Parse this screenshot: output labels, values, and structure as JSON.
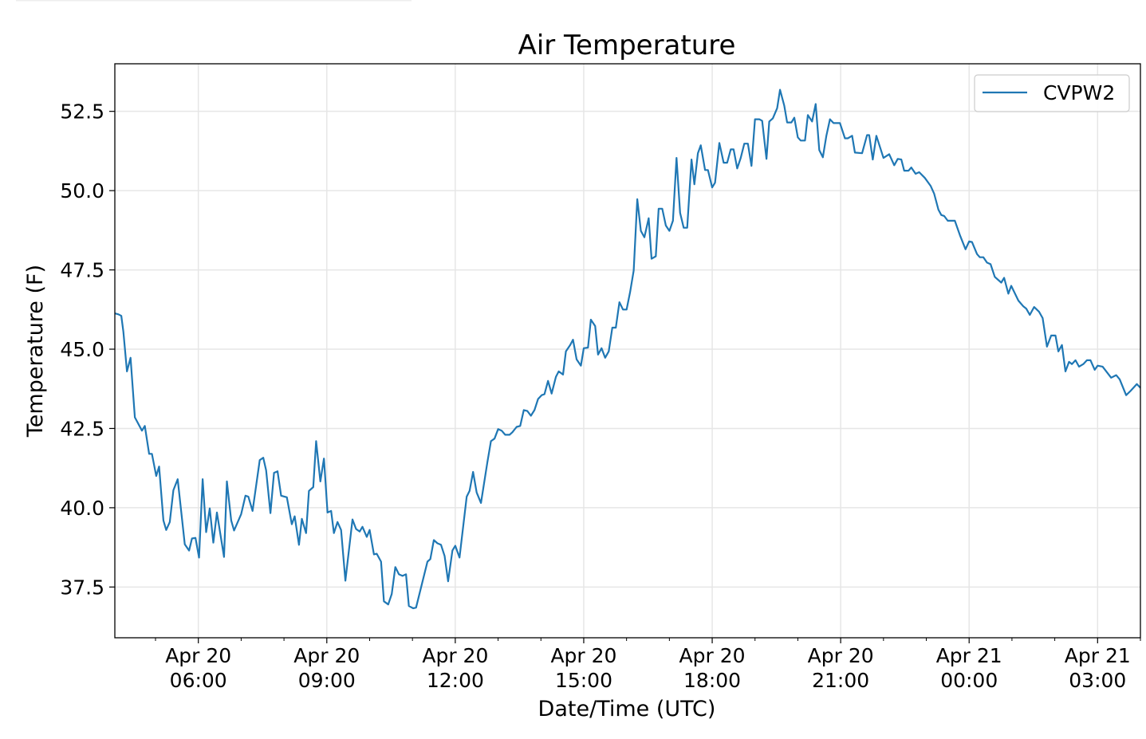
{
  "chart_data": {
    "type": "line",
    "title": "Air Temperature",
    "xlabel": "Date/Time (UTC)",
    "ylabel": "Temperature (F)",
    "x_units": "minutes since Apr 20 00:00 UTC",
    "xlim": [
      243,
      1680
    ],
    "ylim": [
      35.9,
      54.0
    ],
    "grid": true,
    "legend_position": "top-right",
    "x_ticks": [
      {
        "value": 360,
        "line1": "Apr 20",
        "line2": "06:00"
      },
      {
        "value": 540,
        "line1": "Apr 20",
        "line2": "09:00"
      },
      {
        "value": 720,
        "line1": "Apr 20",
        "line2": "12:00"
      },
      {
        "value": 900,
        "line1": "Apr 20",
        "line2": "15:00"
      },
      {
        "value": 1080,
        "line1": "Apr 20",
        "line2": "18:00"
      },
      {
        "value": 1260,
        "line1": "Apr 20",
        "line2": "21:00"
      },
      {
        "value": 1440,
        "line1": "Apr 21",
        "line2": "00:00"
      },
      {
        "value": 1620,
        "line1": "Apr 21",
        "line2": "03:00"
      }
    ],
    "y_ticks": [
      {
        "value": 37.5,
        "label": "37.5"
      },
      {
        "value": 40.0,
        "label": "40.0"
      },
      {
        "value": 42.5,
        "label": "42.5"
      },
      {
        "value": 45.0,
        "label": "45.0"
      },
      {
        "value": 47.5,
        "label": "47.5"
      },
      {
        "value": 50.0,
        "label": "50.0"
      },
      {
        "value": 52.5,
        "label": "52.5"
      }
    ],
    "series": [
      {
        "name": "CVPW2",
        "color": "#1f77b4",
        "x": [
          243,
          248,
          252,
          255,
          260,
          265,
          271,
          281,
          285,
          291,
          295,
          301,
          305,
          311,
          315,
          320,
          325,
          331,
          341,
          347,
          351,
          356,
          361,
          366,
          371,
          376,
          381,
          386,
          396,
          400,
          406,
          410,
          420,
          426,
          430,
          436,
          446,
          451,
          455,
          461,
          466,
          471,
          476,
          484,
          491,
          495,
          501,
          505,
          511,
          515,
          521,
          525,
          531,
          536,
          541,
          546,
          550,
          555,
          560,
          566,
          576,
          581,
          586,
          590,
          596,
          600,
          606,
          610,
          616,
          620,
          626,
          631,
          636,
          641,
          646,
          651,
          655,
          661,
          665,
          681,
          685,
          690,
          695,
          700,
          705,
          710,
          716,
          720,
          726,
          736,
          740,
          745,
          750,
          756,
          765,
          770,
          775,
          780,
          785,
          790,
          796,
          800,
          806,
          811,
          816,
          821,
          826,
          831,
          836,
          841,
          845,
          850,
          855,
          861,
          865,
          871,
          875,
          881,
          885,
          890,
          896,
          900,
          906,
          910,
          916,
          920,
          925,
          930,
          935,
          940,
          945,
          950,
          955,
          960,
          965,
          970,
          975,
          980,
          985,
          991,
          995,
          1001,
          1005,
          1010,
          1015,
          1020,
          1025,
          1030,
          1035,
          1040,
          1045,
          1051,
          1055,
          1060,
          1064,
          1070,
          1074,
          1080,
          1084,
          1090,
          1096,
          1101,
          1106,
          1110,
          1115,
          1120,
          1125,
          1130,
          1135,
          1140,
          1146,
          1150,
          1156,
          1160,
          1165,
          1171,
          1175,
          1181,
          1185,
          1191,
          1195,
          1200,
          1204,
          1210,
          1214,
          1220,
          1225,
          1230,
          1235,
          1240,
          1245,
          1250,
          1259,
          1266,
          1270,
          1276,
          1280,
          1290,
          1297,
          1300,
          1305,
          1310,
          1320,
          1328,
          1335,
          1340,
          1345,
          1349,
          1355,
          1359,
          1365,
          1370,
          1378,
          1386,
          1391,
          1397,
          1401,
          1405,
          1410,
          1420,
          1427,
          1435,
          1440,
          1444,
          1451,
          1455,
          1460,
          1465,
          1470,
          1476,
          1485,
          1489,
          1495,
          1499,
          1509,
          1516,
          1520,
          1525,
          1531,
          1538,
          1543,
          1549,
          1555,
          1561,
          1565,
          1570,
          1575,
          1580,
          1584,
          1589,
          1594,
          1600,
          1605,
          1610,
          1616,
          1620,
          1627,
          1639,
          1646,
          1651,
          1660,
          1666,
          1675,
          1680
        ],
        "y": [
          46.13,
          46.1,
          46.05,
          45.55,
          44.3,
          44.73,
          42.85,
          42.43,
          42.58,
          41.7,
          41.7,
          41.0,
          41.3,
          39.6,
          39.3,
          39.55,
          40.55,
          40.9,
          38.85,
          38.65,
          39.03,
          39.05,
          38.43,
          40.9,
          39.23,
          39.98,
          38.9,
          39.85,
          38.45,
          40.83,
          39.6,
          39.28,
          39.8,
          40.38,
          40.35,
          39.9,
          41.5,
          41.58,
          41.18,
          39.83,
          41.1,
          41.15,
          40.38,
          40.33,
          39.48,
          39.73,
          38.83,
          39.65,
          39.2,
          40.53,
          40.65,
          42.1,
          40.83,
          41.55,
          39.85,
          39.9,
          39.2,
          39.55,
          39.3,
          37.7,
          39.63,
          39.33,
          39.25,
          39.4,
          39.08,
          39.3,
          38.53,
          38.55,
          38.3,
          37.05,
          36.95,
          37.28,
          38.13,
          37.9,
          37.85,
          37.9,
          36.9,
          36.83,
          36.85,
          38.3,
          38.38,
          38.98,
          38.88,
          38.83,
          38.48,
          37.68,
          38.65,
          38.8,
          38.43,
          40.35,
          40.53,
          41.13,
          40.48,
          40.15,
          41.43,
          42.1,
          42.18,
          42.48,
          42.43,
          42.3,
          42.3,
          42.38,
          42.55,
          42.58,
          43.08,
          43.05,
          42.9,
          43.08,
          43.43,
          43.55,
          43.58,
          44.0,
          43.6,
          44.13,
          44.3,
          44.2,
          44.93,
          45.13,
          45.3,
          44.68,
          44.48,
          45.03,
          45.05,
          45.93,
          45.73,
          44.83,
          45.03,
          44.73,
          44.93,
          45.68,
          45.68,
          46.48,
          46.25,
          46.25,
          46.8,
          47.48,
          49.73,
          48.73,
          48.53,
          49.13,
          47.85,
          47.93,
          49.43,
          49.43,
          48.9,
          48.73,
          49.05,
          51.03,
          49.3,
          48.83,
          48.83,
          50.98,
          50.2,
          51.18,
          51.43,
          50.65,
          50.65,
          50.1,
          50.25,
          51.5,
          50.88,
          50.88,
          51.3,
          51.3,
          50.7,
          51.03,
          51.48,
          51.48,
          50.78,
          52.25,
          52.25,
          52.2,
          51.0,
          52.18,
          52.28,
          52.6,
          53.18,
          52.68,
          52.15,
          52.15,
          52.3,
          51.68,
          51.58,
          51.58,
          52.38,
          52.18,
          52.73,
          51.28,
          51.05,
          51.73,
          52.25,
          52.13,
          52.13,
          51.65,
          51.65,
          51.73,
          51.2,
          51.18,
          51.75,
          51.75,
          50.98,
          51.73,
          51.03,
          51.15,
          50.8,
          51.0,
          50.98,
          50.63,
          50.63,
          50.73,
          50.53,
          50.58,
          50.4,
          50.15,
          49.9,
          49.4,
          49.23,
          49.2,
          49.05,
          49.05,
          48.6,
          48.15,
          48.4,
          48.38,
          48.0,
          47.9,
          47.9,
          47.73,
          47.68,
          47.28,
          47.1,
          47.25,
          46.75,
          47.0,
          46.53,
          46.35,
          46.28,
          46.08,
          46.33,
          46.18,
          45.98,
          45.08,
          45.43,
          45.43,
          44.93,
          45.13,
          44.3,
          44.6,
          44.53,
          44.65,
          44.45,
          44.53,
          44.65,
          44.65,
          44.35,
          44.48,
          44.45,
          44.1,
          44.18,
          44.05,
          43.55,
          43.68,
          43.9,
          43.78
        ]
      }
    ]
  }
}
